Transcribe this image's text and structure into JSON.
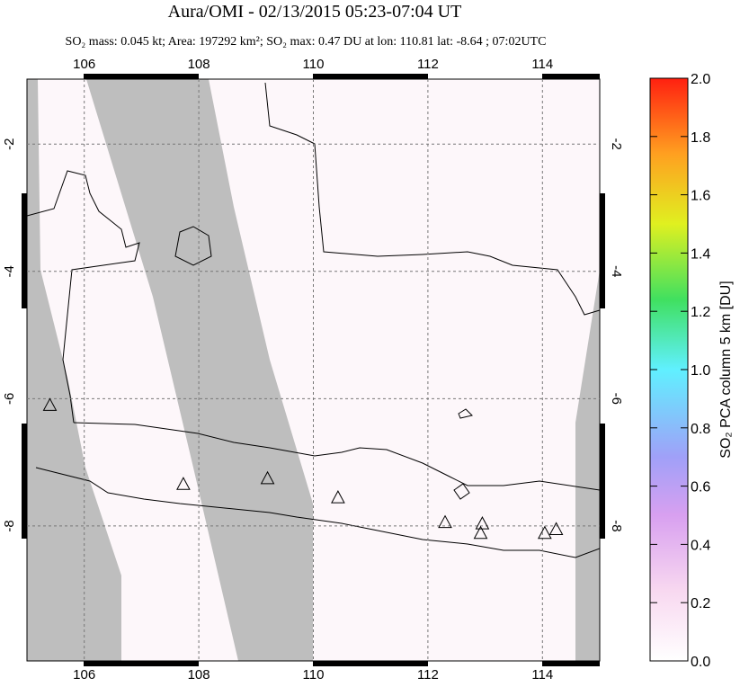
{
  "header": {
    "title": "Aura/OMI - 02/13/2015 05:23-07:04 UT",
    "subtitle": "SO₂ mass: 0.045 kt; Area: 197292 km²; SO₂ max: 0.47 DU at lon: 110.81 lat: -8.64 ; 07:02UTC"
  },
  "map": {
    "type": "map",
    "lonlim": [
      105,
      115
    ],
    "latlim": [
      -0.98,
      -10.12
    ],
    "lonticks": [
      106,
      108,
      110,
      112,
      114
    ],
    "latticks": [
      -2,
      -4,
      -6,
      -8
    ],
    "volcanoes": [
      {
        "lon": 105.4,
        "lat": -6.1
      },
      {
        "lon": 107.73,
        "lat": -7.34
      },
      {
        "lon": 109.2,
        "lat": -7.25
      },
      {
        "lon": 110.43,
        "lat": -7.55
      },
      {
        "lon": 112.3,
        "lat": -7.94
      },
      {
        "lon": 112.95,
        "lat": -7.96
      },
      {
        "lon": 112.92,
        "lat": -8.11
      },
      {
        "lon": 114.04,
        "lat": -8.11
      },
      {
        "lon": 114.24,
        "lat": -8.05
      }
    ]
  },
  "colorbar": {
    "label": "SO₂ PCA column 5 km [DU]",
    "lim": [
      0,
      2
    ],
    "ticks": [
      {
        "value": 0,
        "label": "0.0"
      },
      {
        "value": 0.2,
        "label": "0.2"
      },
      {
        "value": 0.4,
        "label": "0.4"
      },
      {
        "value": 0.6,
        "label": "0.6"
      },
      {
        "value": 0.8,
        "label": "0.8"
      },
      {
        "value": 1,
        "label": "1.0"
      },
      {
        "value": 1.2,
        "label": "1.2"
      },
      {
        "value": 1.4,
        "label": "1.4"
      },
      {
        "value": 1.6,
        "label": "1.6"
      },
      {
        "value": 1.8,
        "label": "1.8"
      },
      {
        "value": 2,
        "label": "2.0"
      }
    ]
  }
}
